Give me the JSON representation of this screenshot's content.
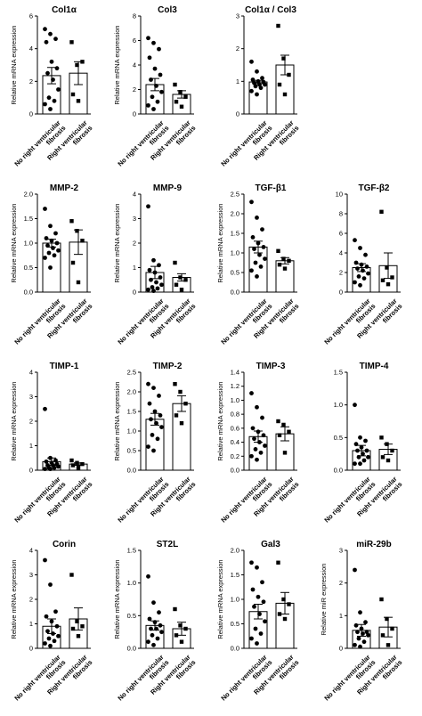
{
  "chart_data": [
    {
      "type": "bar",
      "title": "Col1α",
      "ylabel": "Relative mRNA expression",
      "ylim": [
        0,
        6
      ],
      "yticks": [
        "0",
        "2",
        "4",
        "6"
      ],
      "categories": [
        "No right ventricular fibrosis",
        "Right ventricular fibrosis"
      ],
      "means": [
        2.35,
        2.5
      ],
      "sem": [
        0.5,
        0.7
      ],
      "points": [
        [
          5.2,
          4.9,
          4.6,
          4.4,
          3.2,
          2.8,
          2.5,
          2.1,
          1.5,
          1.0,
          0.8,
          0.6,
          0.3
        ],
        [
          4.4,
          3.0,
          3.2,
          1.2,
          0.8
        ]
      ]
    },
    {
      "type": "bar",
      "title": "Col3",
      "ylabel": "Relative mRNA expression",
      "ylim": [
        0,
        8
      ],
      "yticks": [
        "0",
        "2",
        "4",
        "6",
        "8"
      ],
      "categories": [
        "No right ventricular fibrosis",
        "Right ventricular fibrosis"
      ],
      "means": [
        2.4,
        1.6
      ],
      "sem": [
        0.5,
        0.3
      ],
      "points": [
        [
          6.2,
          5.8,
          5.3,
          4.6,
          3.7,
          3.2,
          2.8,
          2.3,
          1.8,
          1.4,
          1.0,
          0.7,
          0.4
        ],
        [
          2.4,
          1.8,
          1.4,
          1.0,
          0.6
        ]
      ]
    },
    {
      "type": "bar",
      "title": "Col1α / Col3",
      "ylabel": "",
      "ylim": [
        0,
        3
      ],
      "yticks": [
        "0",
        "1",
        "2",
        "3"
      ],
      "categories": [
        "No right ventricular fibrosis",
        "Right ventricular fibrosis"
      ],
      "means": [
        0.98,
        1.5
      ],
      "sem": [
        0.05,
        0.3
      ],
      "points": [
        [
          1.6,
          1.3,
          1.1,
          1.05,
          1.0,
          0.98,
          0.95,
          0.9,
          0.9,
          0.85,
          0.8,
          0.7,
          0.6
        ],
        [
          2.7,
          1.7,
          1.2,
          0.9,
          0.6
        ]
      ]
    },
    {
      "type": "bar",
      "title": "MMP-2",
      "ylabel": "Relative mRNA expression",
      "ylim": [
        0,
        2
      ],
      "yticks": [
        "0.0",
        "0.5",
        "1.0",
        "1.5",
        "2.0"
      ],
      "categories": [
        "No right ventricular fibrosis",
        "Right ventricular fibrosis"
      ],
      "means": [
        1.0,
        1.02
      ],
      "sem": [
        0.08,
        0.25
      ],
      "points": [
        [
          1.7,
          1.35,
          1.2,
          1.1,
          1.05,
          1.0,
          0.95,
          0.9,
          0.85,
          0.8,
          0.75,
          0.7,
          0.5
        ],
        [
          1.45,
          1.25,
          1.05,
          0.6,
          0.2
        ]
      ]
    },
    {
      "type": "bar",
      "title": "MMP-9",
      "ylabel": "Relative mRNA expression",
      "ylim": [
        0,
        4
      ],
      "yticks": [
        "0",
        "1",
        "2",
        "3",
        "4"
      ],
      "categories": [
        "No right ventricular fibrosis",
        "Right ventricular fibrosis"
      ],
      "means": [
        0.8,
        0.6
      ],
      "sem": [
        0.25,
        0.15
      ],
      "points": [
        [
          3.5,
          1.3,
          1.1,
          0.9,
          0.8,
          0.6,
          0.5,
          0.4,
          0.3,
          0.2,
          0.15,
          0.1,
          0.05
        ],
        [
          1.2,
          0.6,
          0.5,
          0.3,
          0.1
        ]
      ]
    },
    {
      "type": "bar",
      "title": "TGF-β1",
      "ylabel": "Relative mRNA expression",
      "ylim": [
        0,
        2.5
      ],
      "yticks": [
        "0.0",
        "0.5",
        "1.0",
        "1.5",
        "2.0",
        "2.5"
      ],
      "categories": [
        "No right ventricular fibrosis",
        "Right ventricular fibrosis"
      ],
      "means": [
        1.15,
        0.8
      ],
      "sem": [
        0.15,
        0.08
      ],
      "points": [
        [
          2.3,
          1.9,
          1.6,
          1.4,
          1.25,
          1.15,
          1.1,
          0.95,
          0.85,
          0.75,
          0.65,
          0.55,
          0.4
        ],
        [
          1.05,
          0.85,
          0.8,
          0.7,
          0.6
        ]
      ]
    },
    {
      "type": "bar",
      "title": "TGF-β2",
      "ylabel": "",
      "ylim": [
        0,
        10
      ],
      "yticks": [
        "0",
        "2",
        "4",
        "6",
        "8",
        "10"
      ],
      "categories": [
        "No right ventricular fibrosis",
        "Right ventricular fibrosis"
      ],
      "means": [
        2.5,
        2.7
      ],
      "sem": [
        0.4,
        1.3
      ],
      "points": [
        [
          5.3,
          4.5,
          3.8,
          3.0,
          2.8,
          2.6,
          2.4,
          2.2,
          1.9,
          1.6,
          1.4,
          1.0,
          0.7
        ],
        [
          8.2,
          2.5,
          1.5,
          1.2,
          0.8
        ]
      ]
    },
    {
      "type": "bar",
      "title": "TIMP-1",
      "ylabel": "Relative mRNA expression",
      "ylim": [
        0,
        4
      ],
      "yticks": [
        "0",
        "1",
        "2",
        "3",
        "4"
      ],
      "categories": [
        "No right ventricular fibrosis",
        "Right ventricular fibrosis"
      ],
      "means": [
        0.35,
        0.25
      ],
      "sem": [
        0.15,
        0.05
      ],
      "points": [
        [
          2.5,
          0.5,
          0.4,
          0.35,
          0.3,
          0.25,
          0.2,
          0.2,
          0.15,
          0.1,
          0.1,
          0.05,
          0.05
        ],
        [
          0.4,
          0.3,
          0.25,
          0.2,
          0.1
        ]
      ]
    },
    {
      "type": "bar",
      "title": "TIMP-2",
      "ylabel": "Relative mRNA expression",
      "ylim": [
        0,
        2.5
      ],
      "yticks": [
        "0.0",
        "0.5",
        "1.0",
        "1.5",
        "2.0",
        "2.5"
      ],
      "categories": [
        "No right ventricular fibrosis",
        "Right ventricular fibrosis"
      ],
      "means": [
        1.3,
        1.7
      ],
      "sem": [
        0.15,
        0.2
      ],
      "points": [
        [
          2.2,
          2.1,
          1.9,
          1.7,
          1.5,
          1.4,
          1.3,
          1.2,
          1.1,
          0.9,
          0.8,
          0.6,
          0.5
        ],
        [
          2.2,
          2.0,
          1.7,
          1.4,
          1.2
        ]
      ]
    },
    {
      "type": "bar",
      "title": "TIMP-3",
      "ylabel": "Relative mRNA expression",
      "ylim": [
        0,
        1.4
      ],
      "yticks": [
        "0.0",
        "0.2",
        "0.4",
        "0.6",
        "0.8",
        "1.0",
        "1.2",
        "1.4"
      ],
      "categories": [
        "No right ventricular fibrosis",
        "Right ventricular fibrosis"
      ],
      "means": [
        0.48,
        0.52
      ],
      "sem": [
        0.08,
        0.1
      ],
      "points": [
        [
          1.1,
          0.9,
          0.75,
          0.6,
          0.55,
          0.5,
          0.45,
          0.4,
          0.35,
          0.3,
          0.25,
          0.2,
          0.15
        ],
        [
          0.7,
          0.65,
          0.55,
          0.5,
          0.25
        ]
      ]
    },
    {
      "type": "bar",
      "title": "TIMP-4",
      "ylabel": "",
      "ylim": [
        0,
        1.5
      ],
      "yticks": [
        "0.0",
        "0.5",
        "1.0",
        "1.5"
      ],
      "categories": [
        "No right ventricular fibrosis",
        "Right ventricular fibrosis"
      ],
      "means": [
        0.3,
        0.32
      ],
      "sem": [
        0.08,
        0.08
      ],
      "points": [
        [
          1.0,
          0.5,
          0.45,
          0.4,
          0.35,
          0.3,
          0.3,
          0.25,
          0.2,
          0.2,
          0.15,
          0.1,
          0.1
        ],
        [
          0.5,
          0.4,
          0.3,
          0.2,
          0.15
        ]
      ]
    },
    {
      "type": "bar",
      "title": "Corin",
      "ylabel": "Relative mRNA expression",
      "ylim": [
        0,
        4
      ],
      "yticks": [
        "0",
        "1",
        "2",
        "3",
        "4"
      ],
      "categories": [
        "No right ventricular fibrosis",
        "Right ventricular fibrosis"
      ],
      "means": [
        0.9,
        1.2
      ],
      "sem": [
        0.3,
        0.45
      ],
      "points": [
        [
          3.6,
          2.6,
          1.5,
          1.3,
          1.1,
          0.9,
          0.7,
          0.6,
          0.5,
          0.4,
          0.3,
          0.2,
          0.1
        ],
        [
          3.0,
          1.1,
          0.9,
          0.8,
          0.5
        ]
      ]
    },
    {
      "type": "bar",
      "title": "ST2L",
      "ylabel": "Relative mRNA expression",
      "ylim": [
        0,
        1.5
      ],
      "yticks": [
        "0.0",
        "0.5",
        "1.0",
        "1.5"
      ],
      "categories": [
        "No right ventricular fibrosis",
        "Right ventricular fibrosis"
      ],
      "means": [
        0.35,
        0.3
      ],
      "sem": [
        0.07,
        0.1
      ],
      "points": [
        [
          1.1,
          0.7,
          0.55,
          0.45,
          0.4,
          0.35,
          0.3,
          0.3,
          0.25,
          0.2,
          0.15,
          0.1,
          0.05
        ],
        [
          0.6,
          0.35,
          0.3,
          0.2,
          0.1
        ]
      ]
    },
    {
      "type": "bar",
      "title": "Gal3",
      "ylabel": "Relative mRNA expression",
      "ylim": [
        0,
        2
      ],
      "yticks": [
        "0.0",
        "0.5",
        "1.0",
        "1.5",
        "2.0"
      ],
      "categories": [
        "No right ventricular fibrosis",
        "Right ventricular fibrosis"
      ],
      "means": [
        0.75,
        0.92
      ],
      "sem": [
        0.15,
        0.22
      ],
      "points": [
        [
          1.75,
          1.65,
          1.35,
          1.2,
          1.05,
          0.95,
          0.85,
          0.7,
          0.55,
          0.4,
          0.3,
          0.2,
          0.1
        ],
        [
          1.75,
          1.0,
          0.9,
          0.7,
          0.6
        ]
      ]
    },
    {
      "type": "bar",
      "title": "miR-29b",
      "ylabel": "Relative miR expression",
      "ylim": [
        0,
        3
      ],
      "yticks": [
        "0",
        "1",
        "2",
        "3"
      ],
      "categories": [
        "No right ventricular fibrosis",
        "Right ventricular fibrosis"
      ],
      "means": [
        0.55,
        0.65
      ],
      "sem": [
        0.18,
        0.3
      ],
      "points": [
        [
          2.4,
          1.1,
          0.8,
          0.7,
          0.6,
          0.5,
          0.5,
          0.45,
          0.4,
          0.3,
          0.2,
          0.1,
          0.05
        ],
        [
          1.5,
          0.9,
          0.6,
          0.4,
          0.1
        ]
      ]
    }
  ]
}
